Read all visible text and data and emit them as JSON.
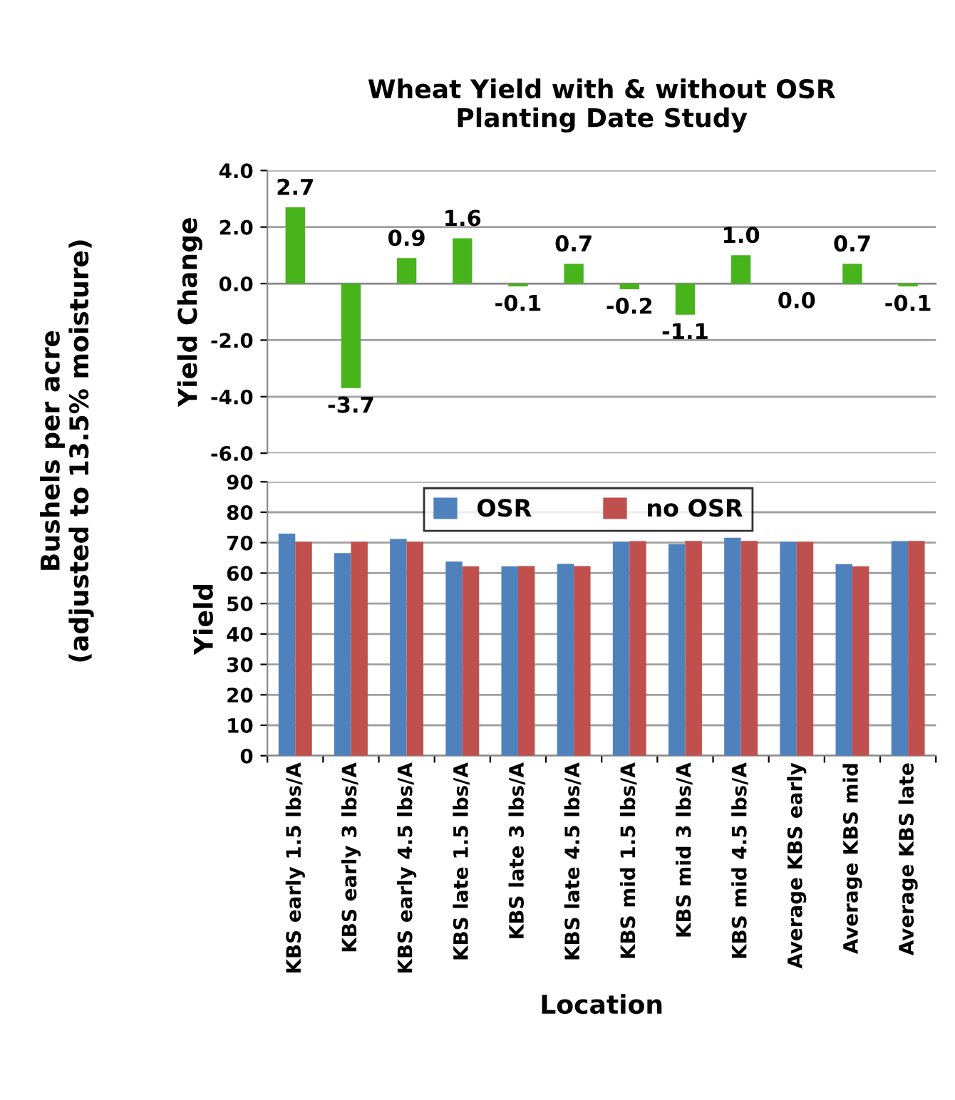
{
  "chart_data": [
    {
      "type": "bar",
      "title": "Wheat Yield with & without OSR\nPlanting Date Study",
      "ylabel": "Yield Change",
      "categories": [
        null,
        null,
        null,
        null,
        null,
        null,
        null,
        null,
        null,
        null,
        null,
        null
      ],
      "series": [
        {
          "color": "#46b41a",
          "values": [
            2.7,
            -3.7,
            0.9,
            1.6,
            -0.1,
            0.7,
            -0.2,
            -1.1,
            1.0,
            0.0,
            0.7,
            -0.1
          ]
        }
      ],
      "value_labels": [
        "2.7",
        "-3.7",
        "0.9",
        "1.6",
        "-0.1",
        "0.7",
        "-0.2",
        "-1.1",
        "1.0",
        "0.0",
        "0.7",
        "-0.1"
      ],
      "ylim": [
        -6,
        4
      ],
      "yticks": [
        {
          "value": -6,
          "label": "-6.0"
        },
        {
          "value": -4,
          "label": "-4.0"
        },
        {
          "value": -2,
          "label": "-2.0"
        },
        {
          "value": 0,
          "label": "0.0"
        },
        {
          "value": 2,
          "label": "2.0"
        },
        {
          "value": 4,
          "label": "4.0"
        }
      ],
      "grid": "y",
      "tick_labels": "y",
      "annotations": [
        "Bushels per acre\n(adjusted to 13.5% moisture)"
      ]
    },
    {
      "type": "bar",
      "ylabel": "Yield",
      "xlabel": "Location",
      "categories": [
        "KBS early 1.5 lbs/A",
        "KBS early 3 lbs/A",
        "KBS early 4.5 lbs/A",
        "KBS late 1.5 lbs/A",
        "KBS late 3 lbs/A",
        "KBS late 4.5 lbs/A",
        "KBS mid 1.5 lbs/A",
        "KBS mid 3 lbs/A",
        "KBS mid 4.5 lbs/A",
        "Average KBS early",
        "Average KBS mid",
        "Average KBS late"
      ],
      "series": [
        {
          "name": "OSR",
          "color": "#4f81bd",
          "values": [
            73.0,
            66.6,
            71.2,
            63.8,
            62.2,
            63.0,
            70.3,
            69.5,
            71.6,
            70.3,
            62.9,
            70.5
          ]
        },
        {
          "name": "no OSR",
          "color": "#c0504d",
          "values": [
            70.3,
            70.3,
            70.3,
            62.2,
            62.3,
            62.3,
            70.5,
            70.6,
            70.6,
            70.3,
            62.2,
            70.6
          ]
        }
      ],
      "ylim": [
        0,
        90
      ],
      "yticks": [
        0,
        10,
        20,
        30,
        40,
        50,
        60,
        70,
        80,
        90
      ],
      "grid": "y",
      "legend": "top"
    }
  ]
}
